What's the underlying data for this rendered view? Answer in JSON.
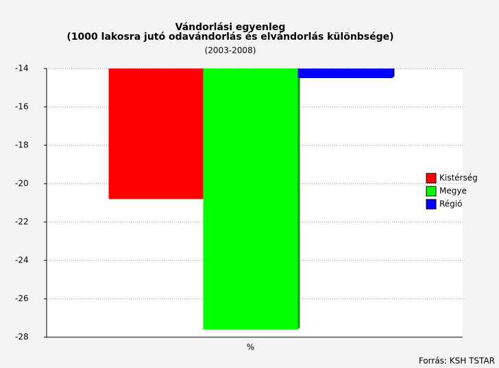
{
  "chart_data": {
    "type": "bar",
    "title": "Vándorlási egyenleg",
    "subtitle": "(1000 lakosra jutó odavándorlás és elvándorlás különbsége)",
    "period": "(2003-2008)",
    "source": "Forrás: KSH TSTAR",
    "categories": [
      "%"
    ],
    "series": [
      {
        "name": "Kistérség",
        "color": "#ff0000",
        "values": [
          -20.8
        ]
      },
      {
        "name": "Megye",
        "color": "#00ff00",
        "values": [
          -27.6
        ]
      },
      {
        "name": "Régió",
        "color": "#0000ff",
        "values": [
          -14.5
        ]
      }
    ],
    "ylim": [
      -28,
      -14
    ],
    "yticks": [
      -28,
      -26,
      -24,
      -22,
      -20,
      -18,
      -16,
      -14
    ],
    "grid": true,
    "legend": "right"
  }
}
